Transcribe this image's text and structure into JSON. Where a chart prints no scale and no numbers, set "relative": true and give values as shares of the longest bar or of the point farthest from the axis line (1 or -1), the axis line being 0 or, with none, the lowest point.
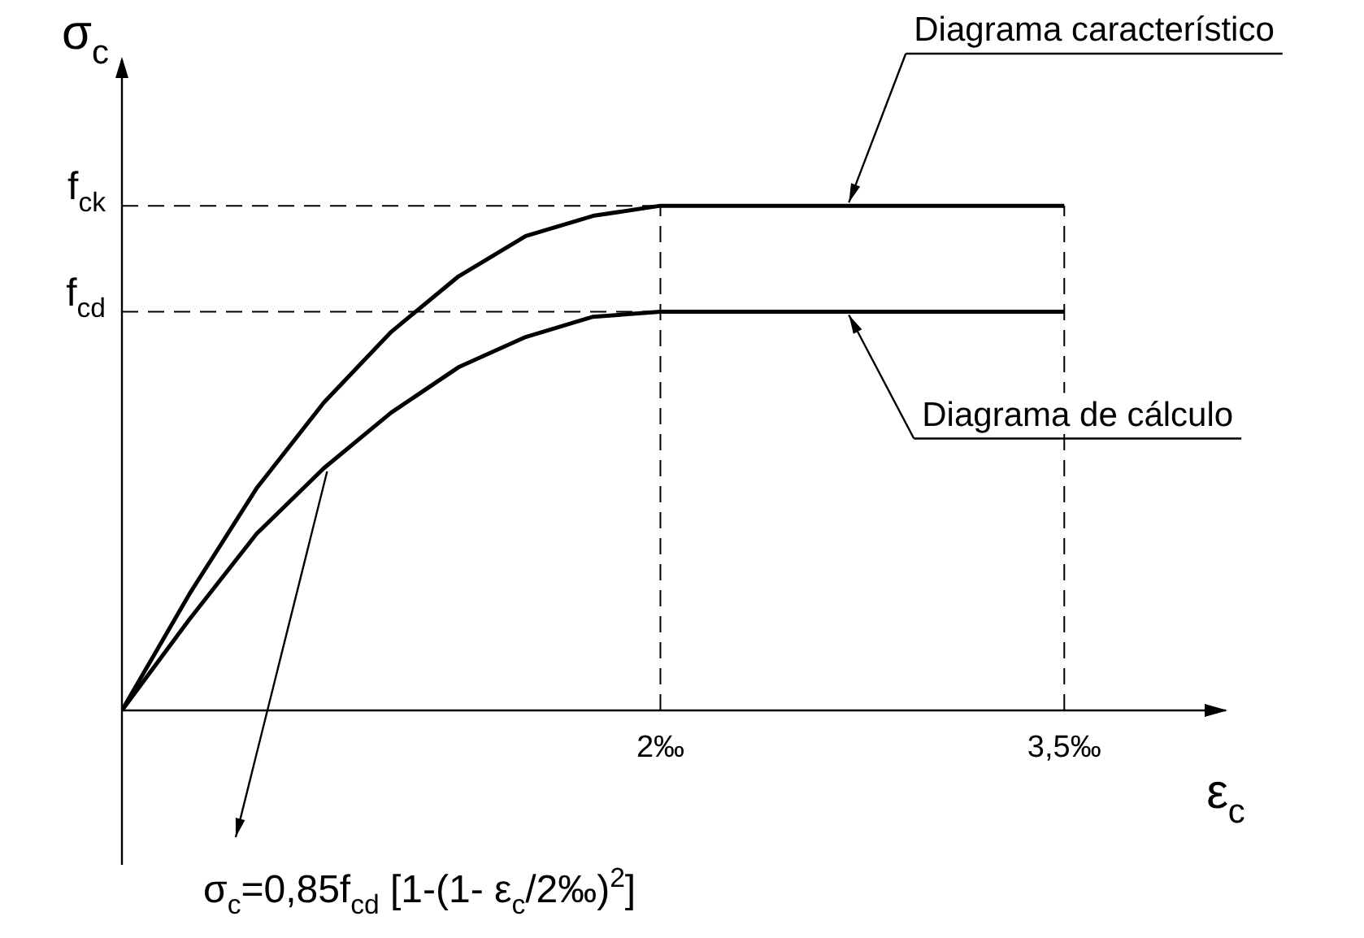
{
  "chart_data": {
    "type": "line",
    "relative": true,
    "xlabel": "ε$_{c}$",
    "ylabel": "σ$_{c}$",
    "x": [
      0,
      0.25,
      0.5,
      0.75,
      1,
      1.25,
      1.5,
      1.75,
      2,
      3.5
    ],
    "series": [
      {
        "color": "#000000",
        "values": [
          0,
          0.23,
          0.44,
          0.61,
          0.75,
          0.86,
          0.94,
          0.98,
          1,
          1
        ]
      },
      {
        "color": "#000000",
        "values": [
          0,
          0.18,
          0.35,
          0.48,
          0.59,
          0.68,
          0.74,
          0.78,
          0.79,
          0.79
        ]
      }
    ],
    "xlim": [
      0,
      4.1
    ],
    "xticks": [
      {
        "value": 2,
        "label": "2‰"
      },
      {
        "value": 3.5,
        "label": "3,5‰"
      }
    ],
    "marker": "none",
    "line_style": "solid",
    "ref_lines": [
      {
        "axis": "y",
        "value": 1,
        "label": "f$_{ck}$",
        "line_style": "dashed"
      },
      {
        "axis": "y",
        "value": 0.79,
        "label": "f$_{cd}$",
        "line_style": "dashed"
      },
      {
        "axis": "x",
        "value": 2,
        "line_style": "dashed"
      },
      {
        "axis": "x",
        "value": 3.5,
        "line_style": "dashed"
      }
    ],
    "annotations": [
      {
        "text": "Diagrama característico",
        "x": 2.7,
        "y": 1
      },
      {
        "text": "Diagrama de cálculo",
        "x": 2.7,
        "y": 0.79
      },
      "σ$_{c}$=0,85f$_{cd}$ [1-(1- ε$_{c}$/2‰)$^{2}$]"
    ]
  }
}
